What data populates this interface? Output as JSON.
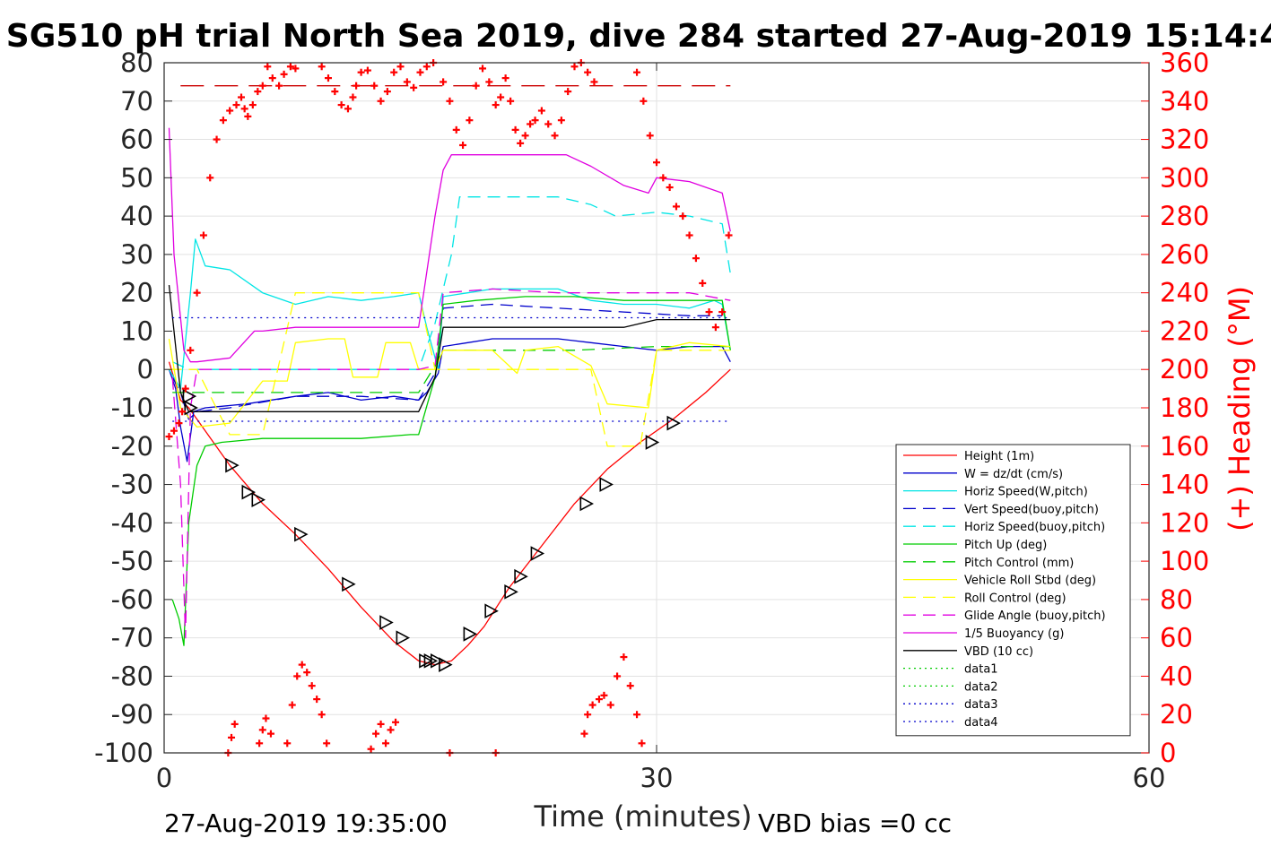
{
  "chart_data": {
    "type": "line",
    "title": "SG510 pH trial North Sea 2019, dive 284 started 27-Aug-2019 15:14:4",
    "xlabel": "Time (minutes)",
    "ylabel": "",
    "y2label": "(+) Heading (°M)",
    "xlim": [
      0,
      60
    ],
    "ylim": [
      -100,
      80
    ],
    "y2lim": [
      0,
      360
    ],
    "x_ticks": [
      "0",
      "30",
      "60"
    ],
    "y_ticks": [
      "-100",
      "-90",
      "-80",
      "-70",
      "-60",
      "-50",
      "-40",
      "-30",
      "-20",
      "-10",
      "0",
      "10",
      "20",
      "30",
      "40",
      "50",
      "60",
      "70",
      "80"
    ],
    "y2_ticks": [
      "0",
      "20",
      "40",
      "60",
      "80",
      "100",
      "120",
      "140",
      "160",
      "180",
      "200",
      "220",
      "240",
      "260",
      "280",
      "300",
      "320",
      "340",
      "360"
    ],
    "grid": true,
    "legend_position": "bottom-right",
    "footer_left": "27-Aug-2019 19:35:00",
    "footer_right": "VBD bias =0 cc",
    "series": [
      {
        "name": "Height (1m)",
        "color": "#ff0000",
        "dash": "solid",
        "x": [
          0.3,
          1.0,
          1.5,
          2.0,
          4.0,
          6.0,
          8.0,
          10.0,
          12.0,
          14.0,
          15.5,
          16.5,
          17.5,
          18.5,
          19.5,
          21.0,
          23.0,
          25.0,
          27.0,
          29.0,
          31.0,
          33.0,
          34.5
        ],
        "y": [
          2,
          -8,
          -10,
          -13,
          -25,
          -35,
          -43,
          -52,
          -62,
          -71,
          -76,
          -77,
          -76,
          -72,
          -67,
          -57,
          -46,
          -35,
          -26,
          -19,
          -13,
          -6,
          0
        ]
      },
      {
        "name": "W = dz/dt (cm/s)",
        "color": "#0000cc",
        "dash": "solid",
        "x": [
          0.3,
          0.7,
          1.0,
          1.4,
          1.8,
          2.5,
          5.0,
          8.0,
          10.0,
          12.0,
          14.0,
          15.5,
          16.0,
          16.7,
          17.0,
          18.5,
          20.0,
          22.0,
          24.0,
          26.0,
          28.0,
          30.0,
          32.0,
          34.0,
          34.5
        ],
        "y": [
          0,
          -5,
          -15,
          -24,
          -11,
          -10,
          -9,
          -7,
          -6,
          -8,
          -7,
          -8,
          -6,
          -1,
          6,
          7,
          8,
          8,
          8,
          7,
          6,
          5,
          6,
          6,
          2
        ]
      },
      {
        "name": "Horiz Speed(W,pitch)",
        "color": "#00e5e5",
        "dash": "solid",
        "x": [
          0.3,
          1.0,
          1.6,
          1.9,
          2.5,
          4.0,
          6.0,
          8.0,
          10.0,
          12.0,
          14.0,
          15.5,
          16.0,
          16.7,
          17.0,
          18.5,
          20.0,
          22.0,
          24.0,
          26.0,
          28.0,
          30.0,
          32.0,
          33.5,
          34.0,
          34.5
        ],
        "y": [
          0,
          -5,
          20,
          34,
          27,
          26,
          20,
          17,
          19,
          18,
          19,
          20,
          11,
          0,
          19,
          20,
          21,
          21,
          21,
          18,
          17,
          17,
          16,
          18,
          17,
          5
        ]
      },
      {
        "name": "Vert Speed(buoy,pitch)",
        "color": "#0000cc",
        "dash": "dash",
        "x": [
          0.5,
          1.0,
          1.5,
          2.0,
          4.0,
          8.0,
          12.0,
          15.5,
          16.5,
          17.0,
          20.0,
          24.0,
          28.0,
          32.0,
          34.0
        ],
        "y": [
          -2,
          -6,
          -13,
          -11,
          -10,
          -7,
          -7,
          -8,
          -1,
          16,
          17,
          16,
          15,
          14,
          14
        ]
      },
      {
        "name": "Horiz Speed(buoy,pitch)",
        "color": "#00e5e5",
        "dash": "dash",
        "x": [
          0.5,
          1.5,
          2.5,
          4.0,
          8.0,
          12.0,
          15.5,
          16.5,
          17.5,
          18.0,
          20.0,
          22.0,
          24.0,
          26.0,
          27.5,
          30.0,
          32.0,
          34.0,
          34.5
        ],
        "y": [
          2,
          0,
          0,
          0,
          0,
          0,
          0,
          12,
          30,
          45,
          45,
          45,
          45,
          43,
          40,
          41,
          40,
          38,
          25
        ]
      },
      {
        "name": "Pitch Up (deg)",
        "color": "#00cc00",
        "dash": "solid",
        "x": [
          0.5,
          0.9,
          1.2,
          1.5,
          2.0,
          2.5,
          3.5,
          6.0,
          9.0,
          12.0,
          15.0,
          15.5,
          16.5,
          17.0,
          19.0,
          22.0,
          25.0,
          28.0,
          31.0,
          34.0,
          34.5
        ],
        "y": [
          -60,
          -65,
          -72,
          -40,
          -25,
          -20,
          -19,
          -18,
          -18,
          -18,
          -17,
          -17,
          -2,
          17,
          18,
          19,
          19,
          18,
          18,
          18,
          5
        ]
      },
      {
        "name": "Pitch Control (mm)",
        "color": "#00cc00",
        "dash": "dash",
        "x": [
          0.5,
          1.0,
          1.5,
          2.5,
          6.0,
          10.0,
          14.0,
          15.5,
          16.5,
          17.0,
          20.0,
          25.0,
          30.0,
          34.5
        ],
        "y": [
          -6,
          -6,
          -6,
          -6,
          -6,
          -6,
          -6,
          -6,
          1,
          5,
          5,
          5,
          6,
          6
        ]
      },
      {
        "name": "Vehicle Roll Stbd (deg)",
        "color": "#ffff00",
        "dash": "solid",
        "x": [
          0.3,
          1.0,
          2.0,
          4.0,
          6.0,
          7.5,
          8.0,
          10.0,
          11.0,
          11.5,
          13.0,
          13.5,
          15.0,
          15.5,
          16.5,
          17.0,
          20.0,
          21.5,
          22.0,
          24.0,
          26.0,
          27.0,
          29.5,
          30.0,
          32.0,
          34.5
        ],
        "y": [
          8,
          -10,
          -15,
          -14,
          -3,
          -3,
          7,
          8,
          8,
          -2,
          -2,
          7,
          7,
          0,
          0,
          5,
          5,
          -1,
          5,
          6,
          1,
          -9,
          -10,
          5,
          7,
          6
        ]
      },
      {
        "name": "Roll Control (deg)",
        "color": "#ffff00",
        "dash": "dash",
        "x": [
          0.3,
          2.0,
          4.0,
          6.0,
          8.0,
          10.0,
          12.0,
          14.0,
          15.5,
          16.5,
          20.0,
          26.0,
          27.0,
          29.0,
          30.0,
          34.5
        ],
        "y": [
          0,
          0,
          -17,
          -17,
          20,
          20,
          20,
          20,
          20,
          0,
          0,
          0,
          -20,
          -20,
          5,
          5
        ]
      },
      {
        "name": "Glide Angle (buoy,pitch)",
        "color": "#e000e0",
        "dash": "dash",
        "x": [
          0.5,
          1.0,
          1.3,
          1.6,
          2.0,
          4.0,
          8.0,
          12.0,
          15.5,
          16.5,
          17.0,
          20.0,
          24.0,
          28.0,
          32.0,
          34.5
        ],
        "y": [
          -2,
          -30,
          -70,
          -10,
          0,
          0,
          0,
          0,
          0,
          1,
          20,
          21,
          20,
          20,
          20,
          18
        ]
      },
      {
        "name": "1/5 Buoyancy (g)",
        "color": "#e000e0",
        "dash": "solid",
        "x": [
          0.3,
          0.6,
          1.2,
          1.6,
          2.0,
          4.0,
          5.5,
          6.0,
          8.0,
          10.0,
          12.0,
          15.0,
          15.5,
          16.5,
          17.0,
          17.5,
          19.0,
          22.0,
          24.5,
          26.0,
          28.0,
          29.5,
          30.0,
          32.0,
          34.0,
          34.5
        ],
        "y": [
          63,
          30,
          5,
          2,
          2,
          3,
          10,
          10,
          11,
          11,
          11,
          11,
          11,
          40,
          52,
          56,
          56,
          56,
          56,
          53,
          48,
          46,
          50,
          49,
          46,
          36
        ]
      },
      {
        "name": "VBD (10 cc)",
        "color": "#000000",
        "dash": "solid",
        "x": [
          0.3,
          1.0,
          1.5,
          2.0,
          5.0,
          10.0,
          15.0,
          15.5,
          16.5,
          17.0,
          20.0,
          24.0,
          28.0,
          30.0,
          32.0,
          34.5
        ],
        "y": [
          22,
          -6,
          -11,
          -11,
          -11,
          -11,
          -11,
          -11,
          -2,
          11,
          11,
          11,
          11,
          13,
          13,
          13
        ]
      },
      {
        "name": "data1",
        "color": "#00cc00",
        "dash": "dot",
        "x": [],
        "y": []
      },
      {
        "name": "data2",
        "color": "#00cc00",
        "dash": "dot",
        "x": [],
        "y": []
      },
      {
        "name": "data3",
        "color": "#0000cc",
        "dash": "dot",
        "x": [
          0.5,
          34.5
        ],
        "y": [
          13.5,
          13.5
        ]
      },
      {
        "name": "data4",
        "color": "#0000cc",
        "dash": "dot",
        "x": [
          0.5,
          34.5
        ],
        "y": [
          -13.5,
          -13.5
        ]
      }
    ],
    "hidden_series": [
      {
        "color": "#cc0000",
        "dash": "longdash",
        "x": [
          1.0,
          34.5
        ],
        "y": [
          74,
          74
        ]
      }
    ],
    "triangle_markers": {
      "x": [
        1.5,
        1.6,
        4.1,
        5.1,
        5.7,
        8.3,
        11.2,
        13.5,
        14.5,
        15.9,
        16.2,
        16.6,
        17.1,
        18.6,
        19.9,
        21.1,
        21.7,
        22.7,
        25.7,
        26.9,
        29.7,
        31.0
      ],
      "y": [
        -7,
        -10,
        -25,
        -32,
        -34,
        -43,
        -56,
        -66,
        -70,
        -76,
        -76,
        -76,
        -77,
        -69,
        -63,
        -58,
        -54,
        -48,
        -35,
        -30,
        -19,
        -14
      ]
    },
    "heading": {
      "name": "(+) Heading (°M)",
      "axis": "right",
      "color": "#ff0000",
      "marker": "+",
      "x": [
        0.3,
        0.6,
        0.9,
        1.1,
        1.3,
        1.6,
        2.0,
        2.4,
        2.8,
        3.2,
        3.6,
        4.0,
        4.4,
        4.7,
        4.9,
        5.1,
        5.4,
        5.7,
        6.0,
        6.3,
        6.6,
        7.0,
        7.3,
        7.7,
        8.0,
        9.6,
        10.0,
        10.4,
        10.8,
        11.2,
        11.5,
        11.7,
        12.0,
        12.4,
        12.8,
        13.2,
        13.6,
        14.0,
        14.4,
        14.8,
        15.2,
        15.6,
        16.0,
        16.4,
        17.0,
        17.4,
        17.8,
        18.2,
        18.6,
        19.0,
        19.4,
        19.8,
        20.2,
        20.5,
        20.8,
        21.1,
        21.4,
        21.7,
        22.0,
        22.3,
        22.6,
        23.0,
        23.4,
        23.8,
        24.2,
        24.6,
        25.0,
        25.4,
        25.8,
        26.2,
        28.8,
        29.2,
        29.6,
        30.0,
        30.4,
        30.8,
        31.2,
        31.6,
        32.0,
        32.4,
        32.8,
        33.2,
        33.6,
        34.0,
        34.4
      ],
      "y": [
        165,
        168,
        172,
        178,
        190,
        210,
        240,
        270,
        300,
        320,
        330,
        335,
        338,
        342,
        336,
        332,
        338,
        345,
        348,
        358,
        352,
        348,
        354,
        358,
        357,
        358,
        352,
        345,
        338,
        336,
        342,
        348,
        355,
        356,
        348,
        340,
        345,
        355,
        358,
        350,
        347,
        355,
        358,
        360,
        350,
        340,
        325,
        317,
        330,
        348,
        357,
        350,
        338,
        342,
        352,
        340,
        325,
        318,
        322,
        328,
        330,
        335,
        328,
        322,
        330,
        345,
        358,
        360,
        355,
        350,
        355,
        340,
        322,
        308,
        300,
        295,
        285,
        280,
        270,
        258,
        245,
        230,
        222,
        230,
        270
      ]
    },
    "heading_low": {
      "x": [
        3.9,
        4.1,
        4.3,
        5.8,
        6.0,
        6.2,
        6.5,
        7.5,
        7.8,
        8.1,
        8.4,
        8.7,
        9.0,
        9.3,
        9.6,
        9.9,
        12.6,
        12.9,
        13.2,
        13.5,
        13.8,
        14.1,
        17.4,
        20.2,
        25.6,
        25.8,
        26.1,
        26.5,
        26.8,
        27.2,
        27.6,
        28.0,
        28.4,
        28.8,
        29.1
      ],
      "y": [
        0,
        8,
        15,
        5,
        12,
        18,
        10,
        5,
        25,
        40,
        46,
        42,
        35,
        28,
        20,
        5,
        2,
        10,
        15,
        5,
        12,
        16,
        0,
        0,
        10,
        20,
        25,
        28,
        30,
        25,
        40,
        50,
        35,
        20,
        5
      ]
    }
  }
}
